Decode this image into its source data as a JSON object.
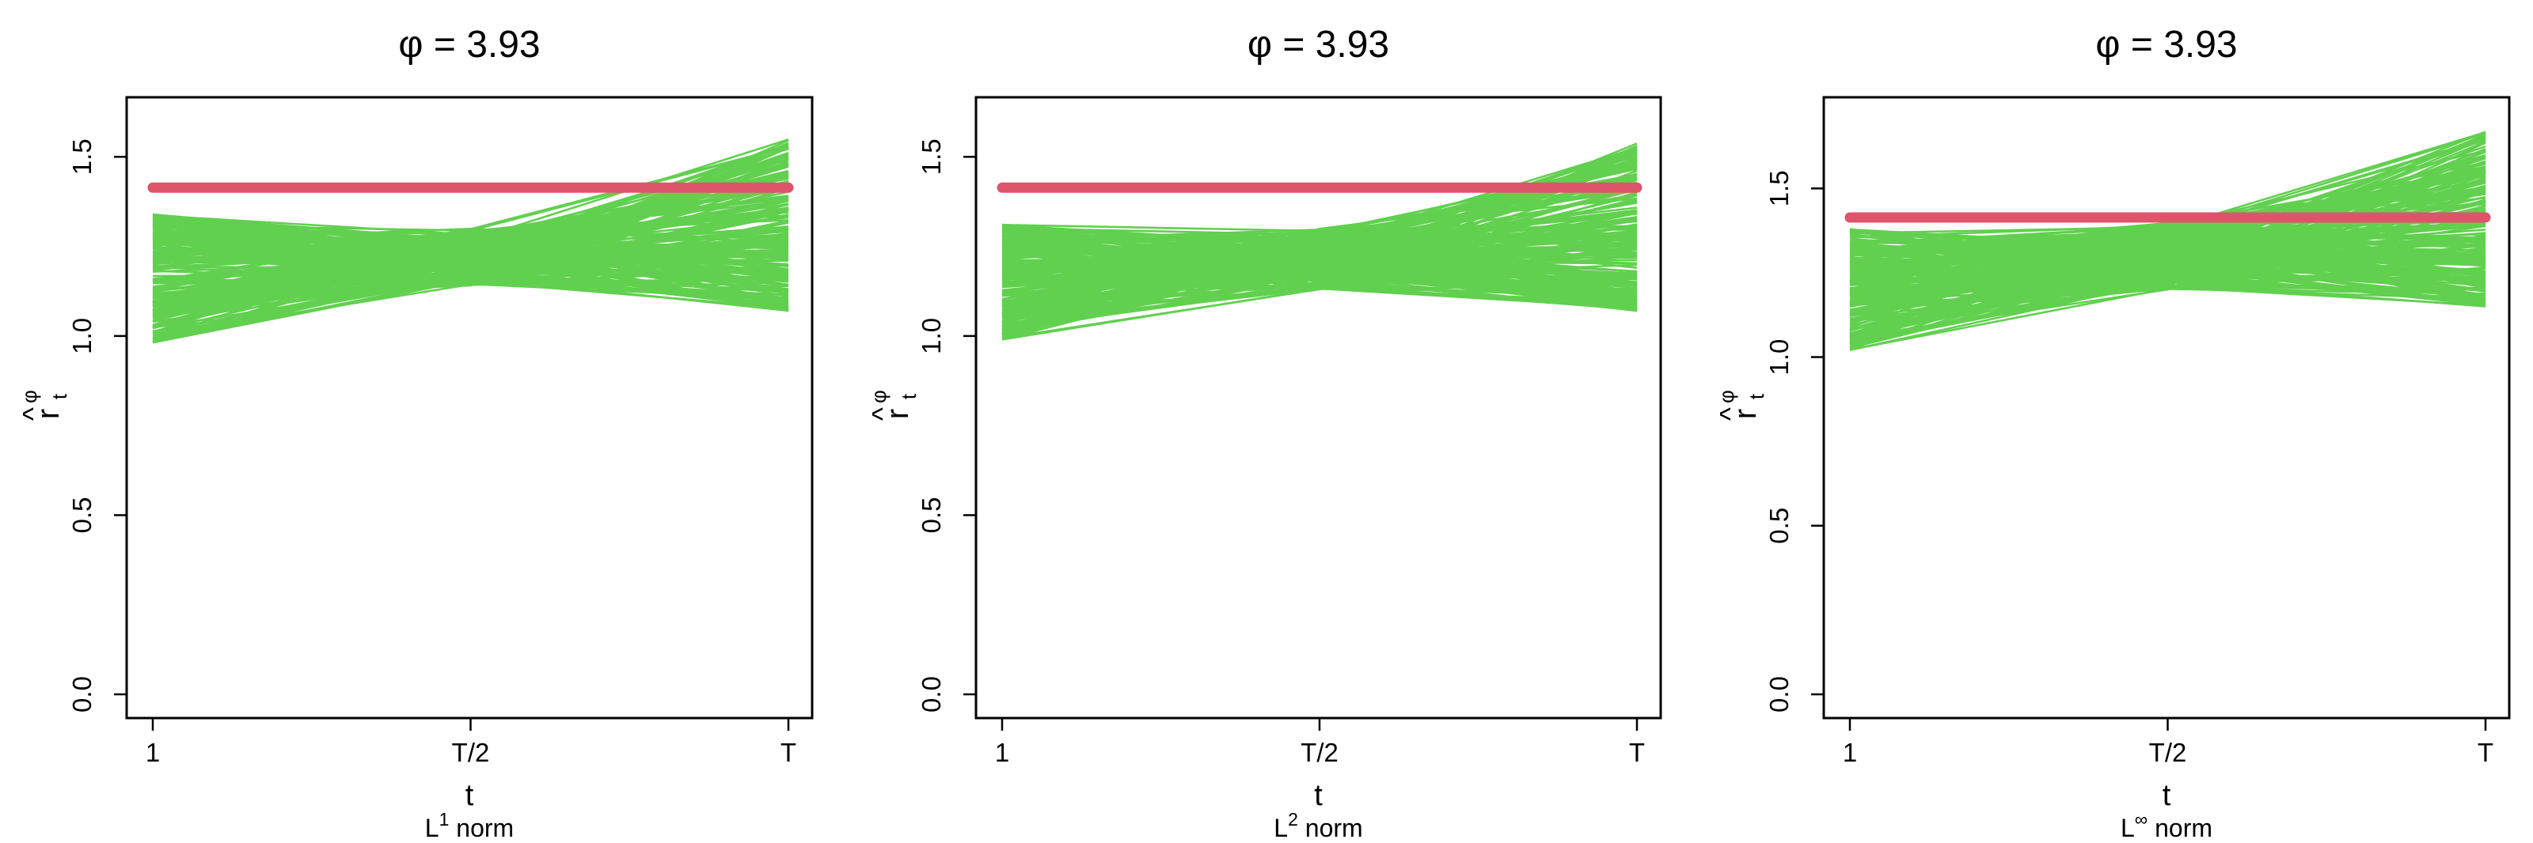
{
  "chart_data": [
    {
      "type": "line",
      "title": "φ = 3.93",
      "xlabel": "t",
      "subtitle": {
        "prefix": "L",
        "superscript": "1",
        "suffix": " norm"
      },
      "ylabel": {
        "base": "r",
        "hat": "^",
        "superscript": "φ",
        "subscript": "t"
      },
      "x": [
        "1",
        "T/2",
        "T"
      ],
      "ylim": [
        0,
        1.6
      ],
      "yticks": [
        "0.0",
        "0.5",
        "1.0",
        "1.5"
      ],
      "reference_line": {
        "y": 1.414,
        "color": "#DF536B"
      },
      "band": {
        "color": "#61D04F",
        "start": [
          0.98,
          1.34
        ],
        "mid": [
          1.14,
          1.3
        ],
        "end": [
          1.07,
          1.55
        ]
      },
      "grid": false
    },
    {
      "type": "line",
      "title": "φ = 3.93",
      "xlabel": "t",
      "subtitle": {
        "prefix": "L",
        "superscript": "2",
        "suffix": " norm"
      },
      "ylabel": {
        "base": "r",
        "hat": "^",
        "superscript": "φ",
        "subscript": "t"
      },
      "x": [
        "1",
        "T/2",
        "T"
      ],
      "ylim": [
        0,
        1.6
      ],
      "yticks": [
        "0.0",
        "0.5",
        "1.0",
        "1.5"
      ],
      "reference_line": {
        "y": 1.414,
        "color": "#DF536B"
      },
      "band": {
        "color": "#61D04F",
        "start": [
          0.99,
          1.32
        ],
        "mid": [
          1.13,
          1.3
        ],
        "end": [
          1.07,
          1.54
        ]
      },
      "grid": false
    },
    {
      "type": "line",
      "title": "φ = 3.93",
      "xlabel": "t",
      "subtitle": {
        "prefix": "L",
        "superscript": "∞",
        "suffix": " norm"
      },
      "ylabel": {
        "base": "r",
        "hat": "^",
        "superscript": "φ",
        "subscript": "t"
      },
      "x": [
        "1",
        "T/2",
        "T"
      ],
      "ylim": [
        0,
        1.7
      ],
      "yticks": [
        "0.0",
        "0.5",
        "1.0",
        "1.5"
      ],
      "reference_line": {
        "y": 1.414,
        "color": "#DF536B"
      },
      "band": {
        "color": "#61D04F",
        "start": [
          1.02,
          1.38
        ],
        "mid": [
          1.2,
          1.4
        ],
        "end": [
          1.15,
          1.67
        ]
      },
      "grid": false
    }
  ]
}
